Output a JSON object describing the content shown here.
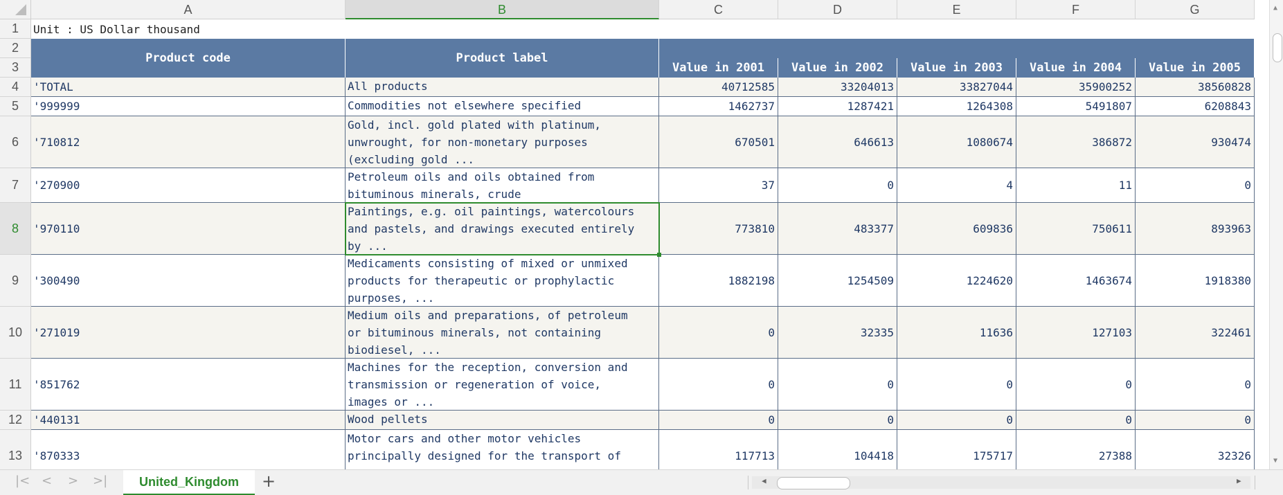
{
  "columns": [
    "A",
    "B",
    "C",
    "D",
    "E",
    "F",
    "G"
  ],
  "selected_column": "B",
  "rows": [
    "1",
    "2",
    "3",
    "4",
    "5",
    "6",
    "7",
    "8",
    "9",
    "10",
    "11",
    "12",
    "13"
  ],
  "selected_row": "8",
  "unit_text": "Unit : US Dollar thousand",
  "headers": {
    "product_code": "Product code",
    "product_label": "Product label",
    "years": [
      "Value in 2001",
      "Value in 2002",
      "Value in 2003",
      "Value in 2004",
      "Value in 2005"
    ]
  },
  "table": [
    {
      "code": "'TOTAL",
      "label": "All products",
      "values": [
        "40712585",
        "33204013",
        "33827044",
        "35900252",
        "38560828"
      ]
    },
    {
      "code": "'999999",
      "label": "Commodities not elsewhere specified",
      "values": [
        "1462737",
        "1287421",
        "1264308",
        "5491807",
        "6208843"
      ]
    },
    {
      "code": "'710812",
      "label": "Gold, incl. gold plated with platinum,\nunwrought, for non-monetary purposes\n(excluding gold ...",
      "values": [
        "670501",
        "646613",
        "1080674",
        "386872",
        "930474"
      ]
    },
    {
      "code": "'270900",
      "label": "Petroleum oils and oils obtained from\nbituminous minerals, crude",
      "values": [
        "37",
        "0",
        "4",
        "11",
        "0"
      ]
    },
    {
      "code": "'970110",
      "label": "Paintings, e.g. oil paintings, watercolours\nand pastels, and drawings executed entirely\nby ...",
      "values": [
        "773810",
        "483377",
        "609836",
        "750611",
        "893963"
      ]
    },
    {
      "code": "'300490",
      "label": "Medicaments consisting of mixed or unmixed\nproducts for therapeutic or prophylactic\npurposes, ...",
      "values": [
        "1882198",
        "1254509",
        "1224620",
        "1463674",
        "1918380"
      ]
    },
    {
      "code": "'271019",
      "label": "Medium oils and preparations, of petroleum\nor bituminous minerals, not containing\nbiodiesel, ...",
      "values": [
        "0",
        "32335",
        "11636",
        "127103",
        "322461"
      ]
    },
    {
      "code": "'851762",
      "label": "Machines for the reception, conversion and\ntransmission or regeneration of voice,\nimages or ...",
      "values": [
        "0",
        "0",
        "0",
        "0",
        "0"
      ]
    },
    {
      "code": "'440131",
      "label": "Wood pellets",
      "values": [
        "0",
        "0",
        "0",
        "0",
        "0"
      ]
    },
    {
      "code": "'870333",
      "label": "Motor cars and other motor vehicles\nprincipally designed for the transport of\npersons ...",
      "values": [
        "117713",
        "104418",
        "175717",
        "27388",
        "32326"
      ]
    }
  ],
  "sheet_tab": "United_Kingdom",
  "add_sheet": "+",
  "accent_color": "#2e8b2e",
  "header_fill_color": "#5b7aa3"
}
